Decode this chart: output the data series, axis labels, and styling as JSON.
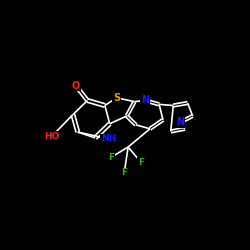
{
  "background_color": "#000000",
  "atom_colors": {
    "C": "#ffffff",
    "N": "#1a1aff",
    "O": "#ff2020",
    "S": "#e8a000",
    "F": "#3cb000",
    "H": "#ffffff"
  },
  "bond_color": "#ffffff",
  "bond_width": 1.2,
  "figsize": [
    2.5,
    2.5
  ],
  "dpi": 100,
  "xlim": [
    0,
    10
  ],
  "ylim": [
    0,
    10
  ]
}
